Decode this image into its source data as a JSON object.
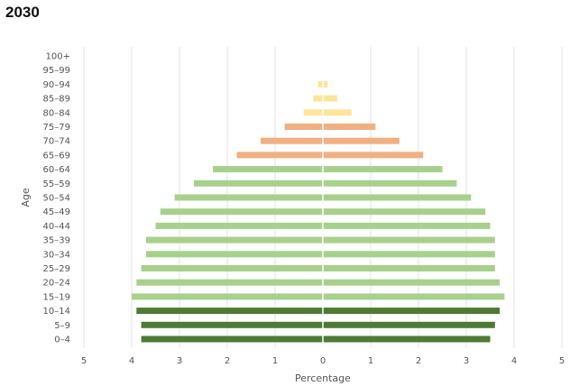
{
  "chart_data": {
    "type": "bar",
    "orientation": "horizontal-population-pyramid",
    "title": "2030",
    "xlabel": "Percentage",
    "ylabel": "Age",
    "xlim": [
      -5,
      5
    ],
    "x_ticks": [
      -5,
      -4,
      -3,
      -2,
      -1,
      0,
      1,
      2,
      3,
      4,
      5
    ],
    "x_tick_labels": [
      "5",
      "4",
      "3",
      "2",
      "1",
      "0",
      "1",
      "2",
      "3",
      "4",
      "5"
    ],
    "grid": true,
    "legend": "none",
    "categories": [
      "0–4",
      "5–9",
      "10–14",
      "15–19",
      "20–24",
      "25–29",
      "30–34",
      "35–39",
      "40–44",
      "45–49",
      "50–54",
      "55–59",
      "60–64",
      "65–69",
      "70–74",
      "75–79",
      "80–84",
      "85–89",
      "90–94",
      "95–99",
      "100+"
    ],
    "series": [
      {
        "side": "left",
        "values": [
          3.8,
          3.8,
          3.9,
          4.0,
          3.9,
          3.8,
          3.7,
          3.7,
          3.5,
          3.4,
          3.1,
          2.7,
          2.3,
          1.8,
          1.3,
          0.8,
          0.4,
          0.2,
          0.1,
          0.0,
          0.0
        ]
      },
      {
        "side": "right",
        "values": [
          3.5,
          3.6,
          3.7,
          3.8,
          3.7,
          3.6,
          3.6,
          3.6,
          3.5,
          3.4,
          3.1,
          2.8,
          2.5,
          2.1,
          1.6,
          1.1,
          0.6,
          0.3,
          0.1,
          0.0,
          0.0
        ]
      }
    ],
    "group_colors": [
      "#4e7a34",
      "#4e7a34",
      "#4e7a34",
      "#a8d08d",
      "#a8d08d",
      "#a8d08d",
      "#a8d08d",
      "#a8d08d",
      "#a8d08d",
      "#a8d08d",
      "#a8d08d",
      "#a8d08d",
      "#a8d08d",
      "#f0b082",
      "#f0b082",
      "#f0b082",
      "#fde49b",
      "#fde49b",
      "#fde49b",
      "#fde49b",
      "#fde49b"
    ]
  }
}
